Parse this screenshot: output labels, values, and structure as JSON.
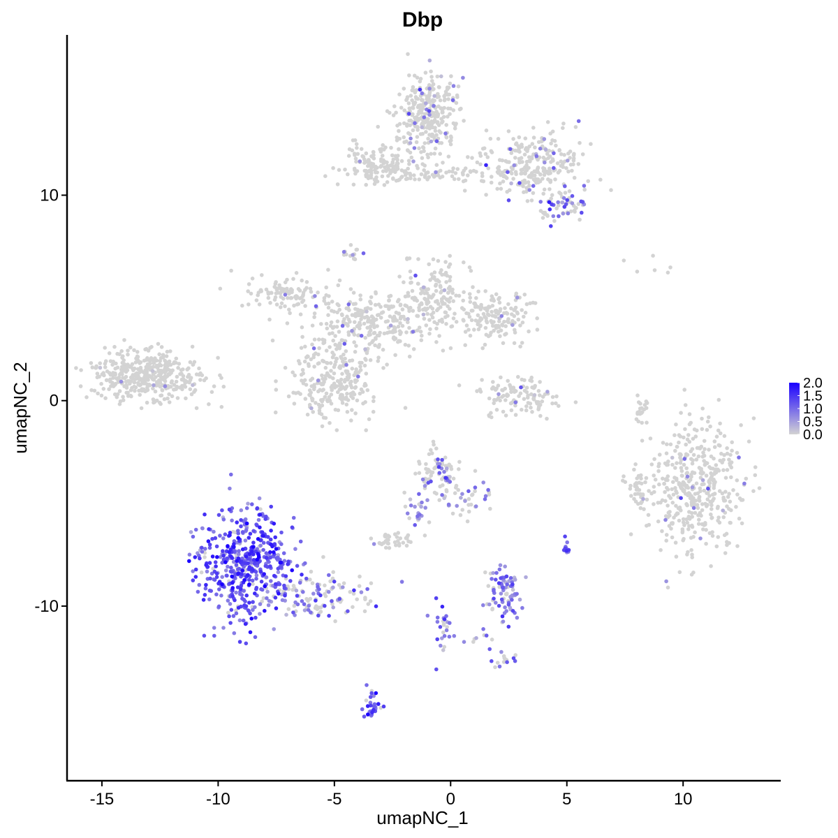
{
  "chart_data": {
    "type": "scatter",
    "title": "Dbp",
    "xlabel": "umapNC_1",
    "ylabel": "umapNC_2",
    "xlim": [
      -16.5,
      14.2
    ],
    "ylim": [
      -18.5,
      17.8
    ],
    "x_ticks": [
      -15,
      -10,
      -5,
      0,
      5,
      10
    ],
    "x_tick_labels": [
      "-15",
      "-10",
      "-5",
      "0",
      "5",
      "10"
    ],
    "y_ticks": [
      -10,
      0,
      10
    ],
    "y_tick_labels": [
      "-10",
      "0",
      "10"
    ],
    "grid": false,
    "legend": {
      "position": "right",
      "type": "colorbar",
      "min": 0.0,
      "max": 2.0,
      "ticks": [
        2.0,
        1.5,
        1.0,
        0.5,
        0.0
      ],
      "tick_labels": [
        "2.0",
        "1.5",
        "1.0",
        "0.5",
        "0.0"
      ],
      "low_color": "#d3d3d3",
      "high_color": "#1a00ff"
    },
    "color_variable": "Dbp expression",
    "clusters": [
      {
        "x": -13.0,
        "y": 1.2,
        "sx": 1.2,
        "sy": 0.6,
        "n": 420,
        "expr_prob": 0.01,
        "expr_mean": 0.6
      },
      {
        "x": -1.0,
        "y": 14.0,
        "sx": 0.6,
        "sy": 1.1,
        "n": 320,
        "expr_prob": 0.06,
        "expr_mean": 0.8
      },
      {
        "x": 3.5,
        "y": 11.5,
        "sx": 1.2,
        "sy": 0.8,
        "n": 260,
        "expr_prob": 0.08,
        "expr_mean": 0.9
      },
      {
        "x": 4.8,
        "y": 9.4,
        "sx": 0.5,
        "sy": 0.4,
        "n": 60,
        "expr_prob": 0.3,
        "expr_mean": 1.0
      },
      {
        "x": -3.2,
        "y": 11.5,
        "sx": 0.8,
        "sy": 0.5,
        "n": 140,
        "expr_prob": 0.02,
        "expr_mean": 0.6
      },
      {
        "x": -0.3,
        "y": 11.0,
        "sx": 1.5,
        "sy": 0.2,
        "n": 60,
        "expr_prob": 0.02,
        "expr_mean": 0.6
      },
      {
        "x": -7.0,
        "y": 5.2,
        "sx": 0.9,
        "sy": 0.5,
        "n": 110,
        "expr_prob": 0.03,
        "expr_mean": 0.6
      },
      {
        "x": -3.5,
        "y": 3.7,
        "sx": 1.2,
        "sy": 0.8,
        "n": 240,
        "expr_prob": 0.04,
        "expr_mean": 0.6
      },
      {
        "x": -0.8,
        "y": 5.0,
        "sx": 0.8,
        "sy": 0.9,
        "n": 170,
        "expr_prob": 0.04,
        "expr_mean": 0.6
      },
      {
        "x": 1.8,
        "y": 4.0,
        "sx": 0.8,
        "sy": 0.6,
        "n": 150,
        "expr_prob": 0.03,
        "expr_mean": 0.6
      },
      {
        "x": -5.0,
        "y": 0.8,
        "sx": 0.9,
        "sy": 0.9,
        "n": 240,
        "expr_prob": 0.04,
        "expr_mean": 0.7
      },
      {
        "x": -4.3,
        "y": 7.2,
        "sx": 0.2,
        "sy": 0.2,
        "n": 15,
        "expr_prob": 0.3,
        "expr_mean": 0.8
      },
      {
        "x": 3.0,
        "y": 0.2,
        "sx": 0.9,
        "sy": 0.5,
        "n": 110,
        "expr_prob": 0.03,
        "expr_mean": 0.6
      },
      {
        "x": 10.6,
        "y": -4.3,
        "sx": 1.1,
        "sy": 1.6,
        "n": 420,
        "expr_prob": 0.03,
        "expr_mean": 0.7
      },
      {
        "x": 8.0,
        "y": -4.3,
        "sx": 0.3,
        "sy": 0.5,
        "n": 40,
        "expr_prob": 0.02,
        "expr_mean": 0.6
      },
      {
        "x": 8.2,
        "y": -0.3,
        "sx": 0.2,
        "sy": 0.6,
        "n": 20,
        "expr_prob": 0.0,
        "expr_mean": 0.5
      },
      {
        "x": -0.5,
        "y": -3.6,
        "sx": 0.5,
        "sy": 0.6,
        "n": 90,
        "expr_prob": 0.3,
        "expr_mean": 0.9
      },
      {
        "x": 1.0,
        "y": -4.8,
        "sx": 0.5,
        "sy": 0.4,
        "n": 30,
        "expr_prob": 0.3,
        "expr_mean": 0.8
      },
      {
        "x": -1.6,
        "y": -5.5,
        "sx": 0.3,
        "sy": 0.5,
        "n": 20,
        "expr_prob": 0.7,
        "expr_mean": 0.8
      },
      {
        "x": -2.5,
        "y": -6.8,
        "sx": 0.4,
        "sy": 0.2,
        "n": 40,
        "expr_prob": 0.03,
        "expr_mean": 0.5
      },
      {
        "x": -8.8,
        "y": -8.0,
        "sx": 1.0,
        "sy": 1.3,
        "n": 520,
        "expr_prob": 0.93,
        "expr_mean": 1.2
      },
      {
        "x": -5.8,
        "y": -9.5,
        "sx": 1.2,
        "sy": 0.6,
        "n": 120,
        "expr_prob": 0.45,
        "expr_mean": 0.9
      },
      {
        "x": 2.3,
        "y": -9.3,
        "sx": 0.4,
        "sy": 0.6,
        "n": 90,
        "expr_prob": 0.7,
        "expr_mean": 0.9
      },
      {
        "x": 5.0,
        "y": -7.2,
        "sx": 0.1,
        "sy": 0.2,
        "n": 12,
        "expr_prob": 0.8,
        "expr_mean": 1.0
      },
      {
        "x": -0.3,
        "y": -11.3,
        "sx": 0.2,
        "sy": 0.7,
        "n": 25,
        "expr_prob": 0.75,
        "expr_mean": 0.9
      },
      {
        "x": 2.2,
        "y": -12.6,
        "sx": 0.3,
        "sy": 0.2,
        "n": 15,
        "expr_prob": 0.6,
        "expr_mean": 0.9
      },
      {
        "x": -3.4,
        "y": -14.8,
        "sx": 0.2,
        "sy": 0.5,
        "n": 30,
        "expr_prob": 0.9,
        "expr_mean": 1.2
      },
      {
        "x": 1.2,
        "y": -11.5,
        "sx": 0.5,
        "sy": 0.15,
        "n": 10,
        "expr_prob": 0.5,
        "expr_mean": 0.9
      },
      {
        "x": 8.5,
        "y": 6.6,
        "sx": 0.7,
        "sy": 0.3,
        "n": 6,
        "expr_prob": 0.0,
        "expr_mean": 0.5
      }
    ]
  }
}
